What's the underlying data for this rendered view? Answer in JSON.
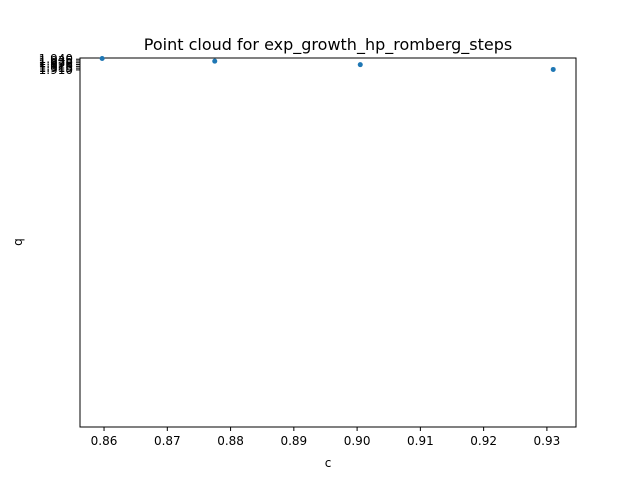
{
  "chart_data": {
    "type": "scatter",
    "title": "Point cloud for exp_growth_hp_romberg_steps",
    "xlabel": "c",
    "ylabel": "q",
    "xlim": [
      0.8562,
      0.9346
    ],
    "ylim": [
      0.9093,
      1.9434
    ],
    "x_ticks": [
      "0.86",
      "0.87",
      "0.88",
      "0.89",
      "0.90",
      "0.91",
      "0.92",
      "0.93"
    ],
    "y_ticks": [
      "1.910",
      "1.915",
      "1.920",
      "1.925",
      "1.930",
      "1.935",
      "1.940"
    ],
    "grid": false,
    "point_color": "#1f77b4",
    "points": [
      {
        "x": 0.8597,
        "y": 1.9421
      },
      {
        "x": 0.8775,
        "y": 1.9345
      },
      {
        "x": 0.9005,
        "y": 1.9247
      },
      {
        "x": 0.931,
        "y": 1.9113
      }
    ]
  }
}
